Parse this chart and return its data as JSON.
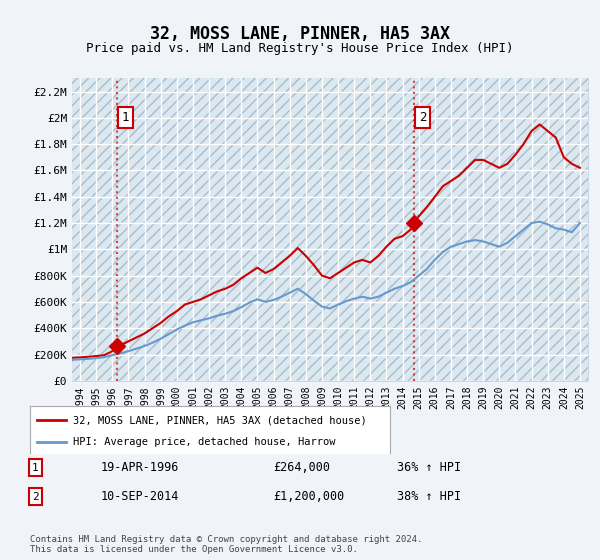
{
  "title": "32, MOSS LANE, PINNER, HA5 3AX",
  "subtitle": "Price paid vs. HM Land Registry's House Price Index (HPI)",
  "background_color": "#f0f4f8",
  "plot_bg_color": "#dce8f0",
  "grid_color": "#ffffff",
  "hatch_color": "#c8d8e8",
  "ylim": [
    0,
    2300000
  ],
  "yticks": [
    0,
    200000,
    400000,
    600000,
    800000,
    1000000,
    1200000,
    1400000,
    1600000,
    1800000,
    2000000,
    2200000
  ],
  "ytick_labels": [
    "£0",
    "£200K",
    "£400K",
    "£600K",
    "£800K",
    "£1M",
    "£1.2M",
    "£1.4M",
    "£1.6M",
    "£1.8M",
    "£2M",
    "£2.2M"
  ],
  "xlim_start": 1993.5,
  "xlim_end": 2025.5,
  "xtick_years": [
    1994,
    1995,
    1996,
    1997,
    1998,
    1999,
    2000,
    2001,
    2002,
    2003,
    2004,
    2005,
    2006,
    2007,
    2008,
    2009,
    2010,
    2011,
    2012,
    2013,
    2014,
    2015,
    2016,
    2017,
    2018,
    2019,
    2020,
    2021,
    2022,
    2023,
    2024,
    2025
  ],
  "sale1_x": 1996.3,
  "sale1_y": 264000,
  "sale1_label": "1",
  "sale1_date": "19-APR-1996",
  "sale1_price": "£264,000",
  "sale1_hpi": "36% ↑ HPI",
  "sale2_x": 2014.7,
  "sale2_y": 1200000,
  "sale2_label": "2",
  "sale2_date": "10-SEP-2014",
  "sale2_price": "£1,200,000",
  "sale2_hpi": "38% ↑ HPI",
  "red_line_color": "#cc0000",
  "blue_line_color": "#6699cc",
  "sale_marker_color": "#cc0000",
  "legend_label_red": "32, MOSS LANE, PINNER, HA5 3AX (detached house)",
  "legend_label_blue": "HPI: Average price, detached house, Harrow",
  "footer_text": "Contains HM Land Registry data © Crown copyright and database right 2024.\nThis data is licensed under the Open Government Licence v3.0.",
  "red_x": [
    1993.5,
    1994.0,
    1994.5,
    1995.0,
    1995.5,
    1996.0,
    1996.3,
    1996.5,
    1997.0,
    1997.5,
    1998.0,
    1998.5,
    1999.0,
    1999.5,
    2000.0,
    2000.5,
    2001.0,
    2001.5,
    2002.0,
    2002.5,
    2003.0,
    2003.5,
    2004.0,
    2004.5,
    2005.0,
    2005.5,
    2006.0,
    2006.5,
    2007.0,
    2007.5,
    2008.0,
    2008.5,
    2009.0,
    2009.5,
    2010.0,
    2010.5,
    2011.0,
    2011.5,
    2012.0,
    2012.5,
    2013.0,
    2013.5,
    2014.0,
    2014.5,
    2014.7,
    2015.0,
    2015.5,
    2016.0,
    2016.5,
    2017.0,
    2017.5,
    2018.0,
    2018.5,
    2019.0,
    2019.5,
    2020.0,
    2020.5,
    2021.0,
    2021.5,
    2022.0,
    2022.5,
    2023.0,
    2023.5,
    2024.0,
    2024.5,
    2025.0
  ],
  "red_y": [
    175000,
    178000,
    183000,
    188000,
    195000,
    225000,
    264000,
    270000,
    300000,
    330000,
    360000,
    400000,
    440000,
    490000,
    530000,
    580000,
    600000,
    620000,
    650000,
    680000,
    700000,
    730000,
    780000,
    820000,
    860000,
    820000,
    850000,
    900000,
    950000,
    1010000,
    950000,
    880000,
    800000,
    780000,
    820000,
    860000,
    900000,
    920000,
    900000,
    950000,
    1020000,
    1080000,
    1100000,
    1150000,
    1200000,
    1250000,
    1320000,
    1400000,
    1480000,
    1520000,
    1560000,
    1620000,
    1680000,
    1680000,
    1650000,
    1620000,
    1650000,
    1720000,
    1800000,
    1900000,
    1950000,
    1900000,
    1850000,
    1700000,
    1650000,
    1620000
  ],
  "blue_x": [
    1993.5,
    1994.0,
    1994.5,
    1995.0,
    1995.5,
    1996.0,
    1996.5,
    1997.0,
    1997.5,
    1998.0,
    1998.5,
    1999.0,
    1999.5,
    2000.0,
    2000.5,
    2001.0,
    2001.5,
    2002.0,
    2002.5,
    2003.0,
    2003.5,
    2004.0,
    2004.5,
    2005.0,
    2005.5,
    2006.0,
    2006.5,
    2007.0,
    2007.5,
    2008.0,
    2008.5,
    2009.0,
    2009.5,
    2010.0,
    2010.5,
    2011.0,
    2011.5,
    2012.0,
    2012.5,
    2013.0,
    2013.5,
    2014.0,
    2014.5,
    2015.0,
    2015.5,
    2016.0,
    2016.5,
    2017.0,
    2017.5,
    2018.0,
    2018.5,
    2019.0,
    2019.5,
    2020.0,
    2020.5,
    2021.0,
    2021.5,
    2022.0,
    2022.5,
    2023.0,
    2023.5,
    2024.0,
    2024.5,
    2025.0
  ],
  "blue_y": [
    160000,
    163000,
    167000,
    172000,
    180000,
    195000,
    210000,
    225000,
    245000,
    265000,
    290000,
    320000,
    355000,
    390000,
    420000,
    445000,
    460000,
    475000,
    495000,
    510000,
    530000,
    560000,
    595000,
    620000,
    600000,
    615000,
    640000,
    670000,
    700000,
    660000,
    610000,
    565000,
    550000,
    580000,
    605000,
    625000,
    640000,
    625000,
    640000,
    670000,
    700000,
    720000,
    750000,
    800000,
    850000,
    920000,
    980000,
    1020000,
    1040000,
    1060000,
    1070000,
    1060000,
    1040000,
    1020000,
    1050000,
    1100000,
    1150000,
    1200000,
    1210000,
    1190000,
    1160000,
    1150000,
    1130000,
    1200000
  ]
}
